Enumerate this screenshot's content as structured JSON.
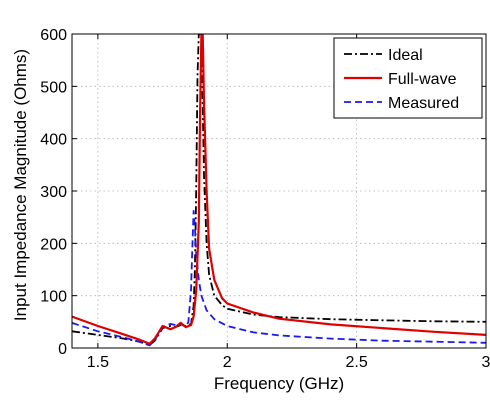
{
  "chart_data": {
    "type": "line",
    "xlabel": "Frequency (GHz)",
    "ylabel": "Input Impedance Magnitude (Ohms)",
    "xlim": [
      1.4,
      3.0
    ],
    "ylim": [
      0,
      600
    ],
    "xticks": [
      1.5,
      2,
      2.5,
      3
    ],
    "xtick_labels": [
      "1.5",
      "2",
      "2.5",
      "3"
    ],
    "yticks": [
      0,
      100,
      200,
      300,
      400,
      500,
      600
    ],
    "ytick_labels": [
      "0",
      "100",
      "200",
      "300",
      "400",
      "500",
      "600"
    ],
    "grid": true,
    "legend_position": "top-right",
    "series": [
      {
        "name": "Ideal",
        "color": "#000000",
        "style": "dashdot",
        "x": [
          1.4,
          1.5,
          1.6,
          1.66,
          1.7,
          1.72,
          1.75,
          1.78,
          1.8,
          1.82,
          1.84,
          1.86,
          1.87,
          1.875,
          1.88,
          1.885,
          1.89,
          1.9,
          1.91,
          1.92,
          1.93,
          1.95,
          1.98,
          2.0,
          2.1,
          2.2,
          2.4,
          2.6,
          2.8,
          3.0
        ],
        "y": [
          32,
          25,
          18,
          12,
          6,
          14,
          38,
          42,
          40,
          44,
          42,
          46,
          80,
          150,
          300,
          520,
          600,
          600,
          330,
          200,
          140,
          100,
          82,
          75,
          64,
          59,
          55,
          53,
          51,
          50
        ]
      },
      {
        "name": "Full-wave",
        "color": "#e00000",
        "style": "solid",
        "x": [
          1.4,
          1.5,
          1.6,
          1.66,
          1.7,
          1.72,
          1.75,
          1.78,
          1.8,
          1.82,
          1.84,
          1.86,
          1.87,
          1.88,
          1.89,
          1.895,
          1.9,
          1.905,
          1.91,
          1.92,
          1.93,
          1.95,
          1.98,
          2.0,
          2.1,
          2.2,
          2.4,
          2.6,
          2.8,
          3.0
        ],
        "y": [
          60,
          42,
          26,
          16,
          8,
          18,
          42,
          36,
          40,
          48,
          40,
          44,
          60,
          110,
          240,
          450,
          600,
          600,
          470,
          300,
          190,
          130,
          95,
          85,
          68,
          56,
          45,
          38,
          31,
          25
        ]
      },
      {
        "name": "Measured",
        "color": "#1a1aee",
        "style": "dashed",
        "x": [
          1.4,
          1.5,
          1.6,
          1.66,
          1.7,
          1.72,
          1.75,
          1.78,
          1.8,
          1.82,
          1.84,
          1.85,
          1.86,
          1.865,
          1.87,
          1.875,
          1.88,
          1.89,
          1.9,
          1.92,
          1.95,
          2.0,
          2.1,
          2.2,
          2.4,
          2.6,
          2.8,
          3.0
        ],
        "y": [
          48,
          32,
          20,
          12,
          5,
          15,
          40,
          46,
          44,
          46,
          40,
          50,
          110,
          190,
          262,
          230,
          180,
          130,
          100,
          72,
          55,
          42,
          30,
          24,
          18,
          14,
          12,
          10
        ]
      }
    ]
  }
}
